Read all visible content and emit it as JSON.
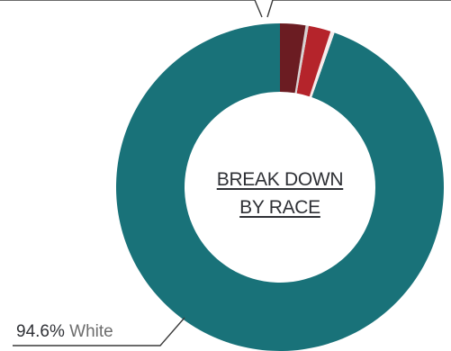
{
  "chart_data": {
    "type": "pie",
    "variant": "donut",
    "center_label_lines": [
      "BREAK DOWN",
      "BY RACE"
    ],
    "slices": [
      {
        "label": "White",
        "value": 94.6,
        "color": "#197279"
      },
      {
        "label": "",
        "value": 0.4,
        "color": "#f6ecec"
      },
      {
        "label": "",
        "value": 2.2,
        "color": "#b5242b"
      },
      {
        "label": "",
        "value": 0.3,
        "color": "#d7d2d2"
      },
      {
        "label": "",
        "value": 2.5,
        "color": "#6b1c22"
      }
    ],
    "visible_label": {
      "pct_text": "94.6%",
      "name_text": "White"
    }
  }
}
